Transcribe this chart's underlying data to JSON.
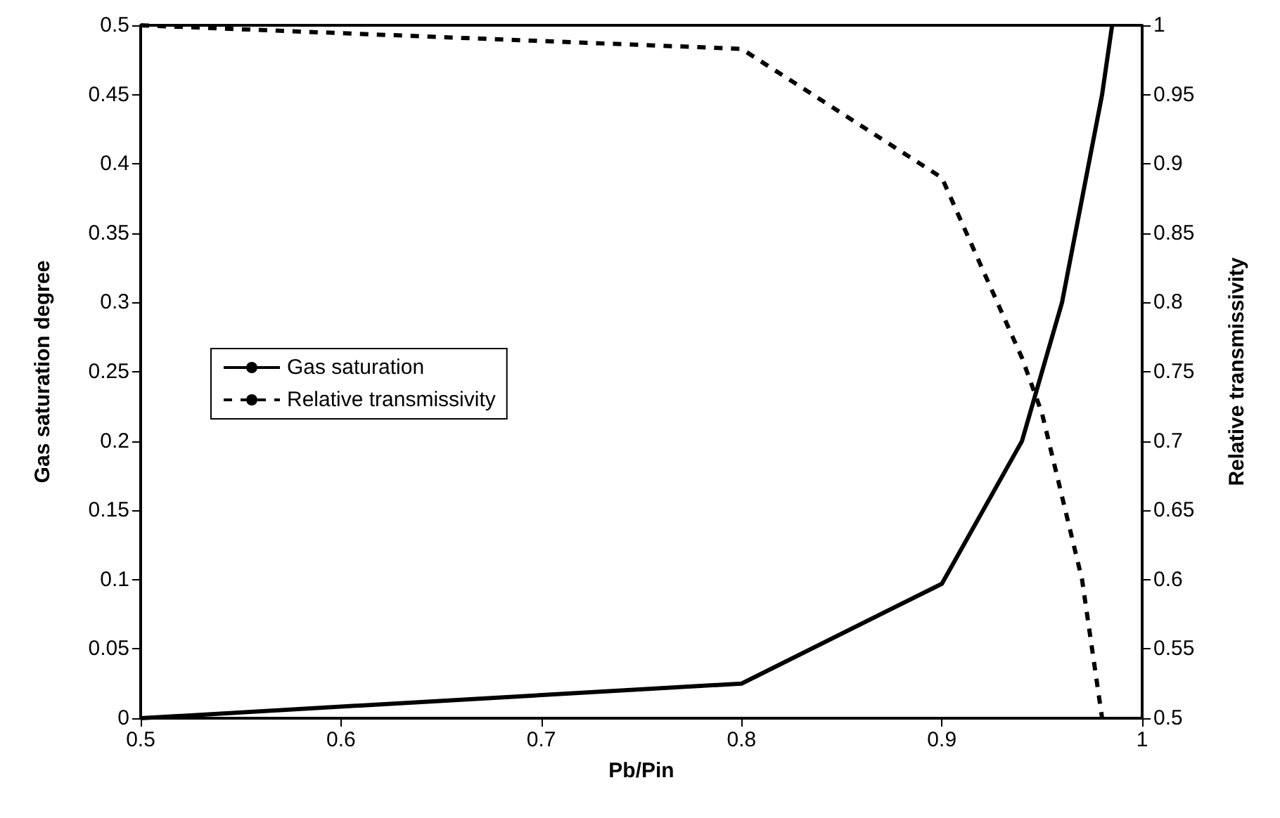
{
  "chart_data": {
    "type": "line",
    "xlabel": "Pb/Pin",
    "ylabel": "Gas saturation degree",
    "y2label": "Relative transmissivity",
    "xlim": [
      0.5,
      1
    ],
    "xticks": [
      0.5,
      0.6,
      0.7,
      0.8,
      0.9,
      1
    ],
    "ylim": [
      0,
      0.5
    ],
    "yticks": [
      0,
      0.05,
      0.1,
      0.15,
      0.2,
      0.25,
      0.3,
      0.35,
      0.4,
      0.45,
      0.5
    ],
    "y2lim": [
      0.5,
      1
    ],
    "y2ticks": [
      0.5,
      0.55,
      0.6,
      0.65,
      0.7,
      0.75,
      0.8,
      0.85,
      0.9,
      0.95,
      1
    ],
    "grid": false,
    "legend": "left",
    "marker": "none",
    "series": [
      {
        "name": "Gas saturation",
        "color": "#000000",
        "line_style": "solid",
        "x": [
          0.5,
          0.8,
          0.9,
          0.94,
          0.96,
          0.98,
          0.985
        ],
        "values": [
          0,
          0.025,
          0.097,
          0.2,
          0.3,
          0.45,
          0.5
        ]
      },
      {
        "name": "Relative transmissivity",
        "color": "#000000",
        "line_style": "dashed",
        "axis": "y2",
        "x": [
          0.5,
          0.8,
          0.9,
          0.94,
          0.95,
          0.97,
          0.98
        ],
        "values": [
          1,
          0.983,
          0.89,
          0.76,
          0.72,
          0.6,
          0.5
        ]
      }
    ]
  }
}
